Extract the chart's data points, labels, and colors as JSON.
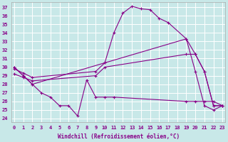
{
  "background_color": "#c8e8e8",
  "grid_color": "#ffffff",
  "line_color": "#880088",
  "xlabel": "Windchill (Refroidissement éolien,°C)",
  "yticks": [
    24,
    25,
    26,
    27,
    28,
    29,
    30,
    31,
    32,
    33,
    34,
    35,
    36,
    37
  ],
  "xticks": [
    0,
    1,
    2,
    3,
    4,
    5,
    6,
    7,
    8,
    9,
    10,
    11,
    12,
    13,
    14,
    15,
    16,
    17,
    18,
    19,
    20,
    21,
    22,
    23
  ],
  "ylim": [
    23.6,
    37.6
  ],
  "xlim": [
    -0.3,
    23.3
  ],
  "curves": [
    {
      "x": [
        0,
        1,
        2,
        10,
        11,
        12,
        13,
        14,
        15,
        16,
        17,
        19,
        20,
        21,
        22,
        23
      ],
      "y": [
        30.0,
        29.0,
        28.0,
        30.5,
        34.0,
        36.3,
        37.1,
        36.8,
        36.7,
        35.7,
        35.2,
        33.3,
        29.5,
        25.5,
        25.0,
        25.5
      ]
    },
    {
      "x": [
        0,
        1,
        2,
        9,
        10,
        19,
        20,
        21,
        22,
        23
      ],
      "y": [
        29.8,
        29.3,
        28.8,
        29.5,
        30.5,
        33.3,
        31.5,
        29.5,
        25.5,
        25.5
      ]
    },
    {
      "x": [
        0,
        1,
        2,
        9,
        10,
        19,
        20,
        21,
        22,
        23
      ],
      "y": [
        29.2,
        28.8,
        28.4,
        29.0,
        30.0,
        31.5,
        31.5,
        29.5,
        25.5,
        25.5
      ]
    },
    {
      "x": [
        0,
        1,
        2,
        3,
        4,
        5,
        6,
        7,
        8,
        9,
        10,
        11,
        19,
        20,
        21,
        22,
        23
      ],
      "y": [
        30.0,
        29.0,
        28.0,
        27.0,
        26.5,
        25.5,
        25.5,
        24.3,
        28.5,
        26.5,
        26.5,
        26.5,
        26.0,
        26.0,
        26.0,
        26.0,
        25.5
      ]
    }
  ]
}
